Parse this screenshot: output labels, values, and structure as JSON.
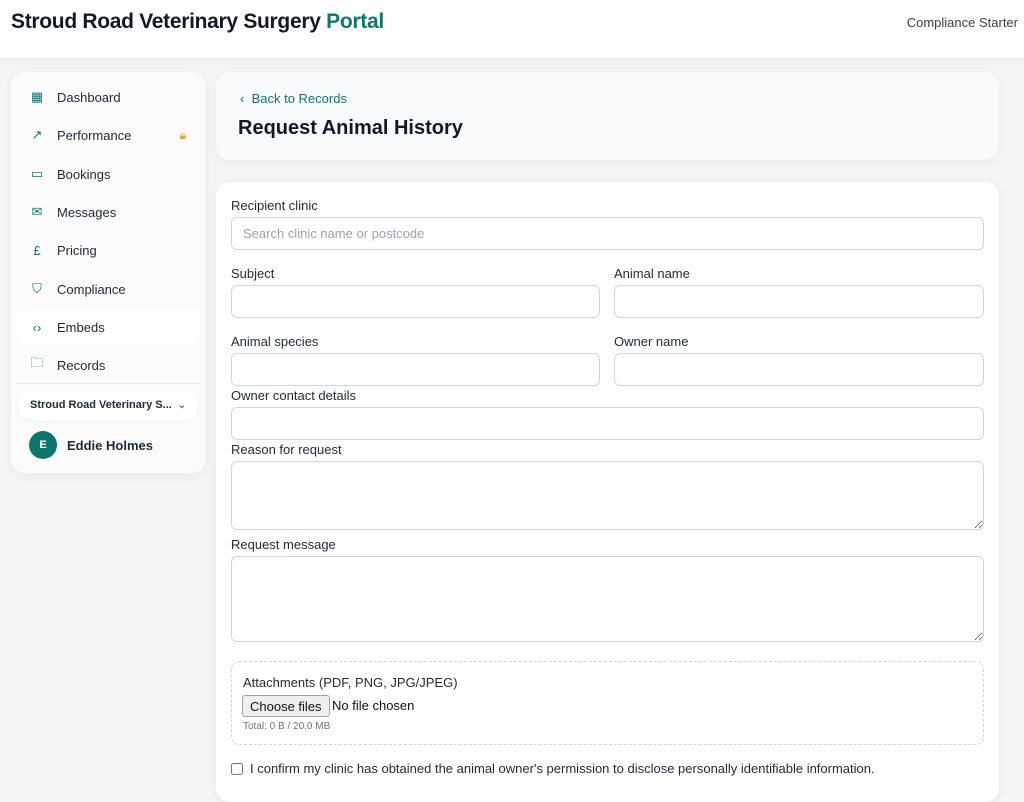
{
  "header": {
    "brand_main": "Stroud Road Veterinary Surgery",
    "brand_accent": "Portal",
    "plan": "Compliance Starter"
  },
  "sidebar": {
    "items": [
      {
        "label": "Dashboard",
        "icon": "grid-icon"
      },
      {
        "label": "Performance",
        "icon": "trending-up-icon",
        "locked": true
      },
      {
        "label": "Bookings",
        "icon": "chat-icon"
      },
      {
        "label": "Messages",
        "icon": "mail-icon"
      },
      {
        "label": "Pricing",
        "icon": "pound-icon"
      },
      {
        "label": "Compliance",
        "icon": "shield-icon"
      },
      {
        "label": "Embeds",
        "icon": "code-icon",
        "active": true
      },
      {
        "label": "Records",
        "icon": "folder-icon"
      }
    ],
    "clinic": "Stroud Road Veterinary S...",
    "user": {
      "initial": "E",
      "name": "Eddie Holmes"
    }
  },
  "page": {
    "back": "Back to Records",
    "title": "Request Animal History"
  },
  "form": {
    "recipient_label": "Recipient clinic",
    "recipient_placeholder": "Search clinic name or postcode",
    "subject_label": "Subject",
    "animal_name_label": "Animal name",
    "species_label": "Animal species",
    "owner_name_label": "Owner name",
    "owner_contact_label": "Owner contact details",
    "reason_label": "Reason for request",
    "message_label": "Request message",
    "attachments_label": "Attachments (PDF, PNG, JPG/JPEG)",
    "choose_files": "Choose files",
    "no_file": "No file chosen",
    "total": "Total: 0 B / 20.0 MB",
    "confirm": "I confirm my clinic has obtained the animal owner's permission to disclose personally identifiable information."
  },
  "colors": {
    "accent": "#0f766e",
    "lock": "#f59e42"
  }
}
